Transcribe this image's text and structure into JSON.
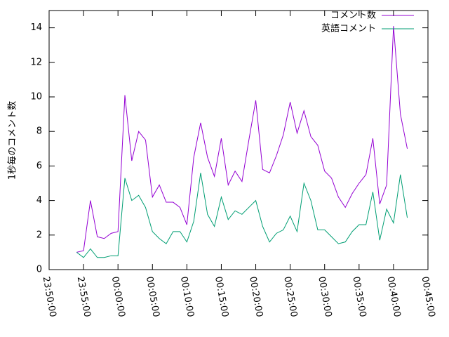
{
  "chart_data": {
    "type": "line",
    "y_label": "1秒毎のコメント数",
    "x": [
      "23:54:00",
      "23:55:00",
      "23:56:00",
      "23:57:00",
      "23:58:00",
      "23:59:00",
      "00:00:00",
      "00:01:00",
      "00:02:00",
      "00:03:00",
      "00:04:00",
      "00:05:00",
      "00:06:00",
      "00:07:00",
      "00:08:00",
      "00:09:00",
      "00:10:00",
      "00:11:00",
      "00:12:00",
      "00:13:00",
      "00:14:00",
      "00:15:00",
      "00:16:00",
      "00:17:00",
      "00:18:00",
      "00:19:00",
      "00:20:00",
      "00:21:00",
      "00:22:00",
      "00:23:00",
      "00:24:00",
      "00:25:00",
      "00:26:00",
      "00:27:00",
      "00:28:00",
      "00:29:00",
      "00:30:00",
      "00:31:00",
      "00:32:00",
      "00:33:00",
      "00:34:00",
      "00:35:00",
      "00:36:00",
      "00:37:00",
      "00:38:00",
      "00:39:00",
      "00:40:00",
      "00:41:00",
      "00:42:00"
    ],
    "series": [
      {
        "name": "コメント数",
        "color": "#9400d3",
        "values": [
          1.0,
          1.1,
          4.0,
          1.9,
          1.8,
          2.1,
          2.2,
          10.1,
          6.3,
          8.0,
          7.5,
          4.2,
          4.9,
          3.9,
          3.9,
          3.6,
          2.6,
          6.5,
          8.5,
          6.5,
          5.4,
          7.6,
          4.9,
          5.7,
          5.1,
          7.5,
          9.8,
          5.8,
          5.6,
          6.6,
          7.8,
          9.7,
          7.9,
          9.2,
          7.7,
          7.2,
          5.7,
          5.3,
          4.2,
          3.6,
          4.4,
          5.0,
          5.5,
          7.6,
          3.8,
          4.9,
          14.1,
          9.0,
          7.0
        ]
      },
      {
        "name": "英語コメント",
        "color": "#009e73",
        "values": [
          1.0,
          0.7,
          1.2,
          0.7,
          0.7,
          0.8,
          0.8,
          5.3,
          4.0,
          4.3,
          3.6,
          2.2,
          1.8,
          1.5,
          2.2,
          2.2,
          1.6,
          2.8,
          5.6,
          3.2,
          2.5,
          4.2,
          2.9,
          3.4,
          3.2,
          3.6,
          4.0,
          2.5,
          1.6,
          2.1,
          2.3,
          3.1,
          2.2,
          5.0,
          4.0,
          2.3,
          2.3,
          1.9,
          1.5,
          1.6,
          2.2,
          2.6,
          2.6,
          4.5,
          1.7,
          3.5,
          2.7,
          5.5,
          3.0
        ]
      }
    ],
    "xlim": [
      "23:50:00",
      "00:45:00"
    ],
    "xticks": [
      "23:50:00",
      "23:55:00",
      "00:00:00",
      "00:05:00",
      "00:10:00",
      "00:15:00",
      "00:20:00",
      "00:25:00",
      "00:30:00",
      "00:35:00",
      "00:40:00",
      "00:45:00"
    ],
    "ylim": [
      0,
      15
    ],
    "yticks": [
      0,
      2,
      4,
      6,
      8,
      10,
      12,
      14
    ],
    "legend": "top-right"
  }
}
